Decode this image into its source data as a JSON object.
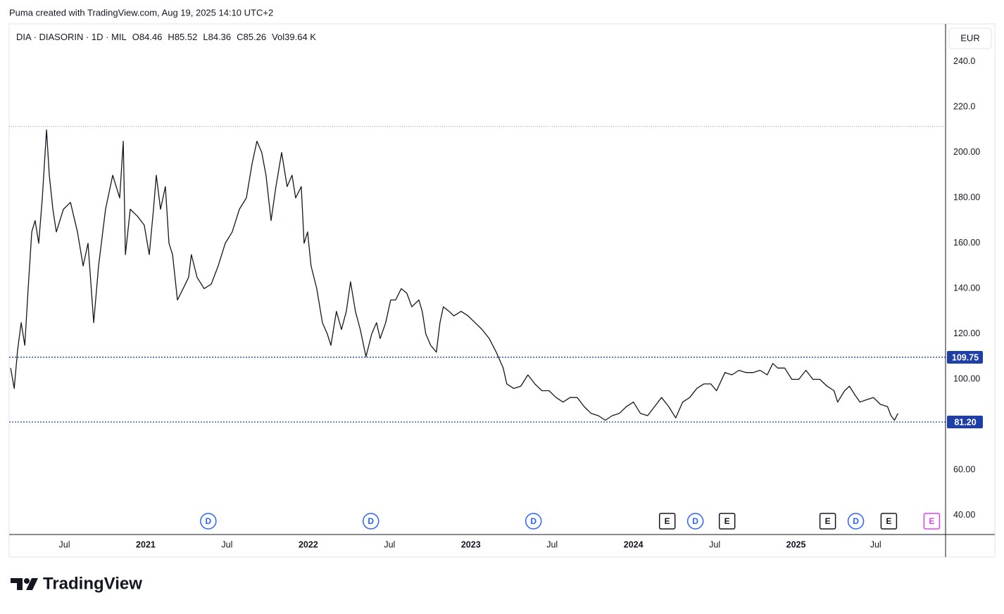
{
  "header": {
    "attribution": "Puma created with TradingView.com, Aug 19, 2025 14:10 UTC+2"
  },
  "chart_data": {
    "type": "line",
    "symbol": "DIA · DIASORIN · 1D · MIL",
    "ohlc": [
      {
        "label": "O",
        "value": 84.46
      },
      {
        "label": "H",
        "value": 85.52
      },
      {
        "label": "L",
        "value": 84.36
      },
      {
        "label": "C",
        "value": 85.26
      }
    ],
    "volume": {
      "label": "Vol",
      "value": "39.64 K"
    },
    "currency": "EUR",
    "x": [
      2020.169,
      2020.191,
      2020.212,
      2020.234,
      2020.256,
      2020.277,
      2020.299,
      2020.32,
      2020.342,
      2020.364,
      2020.39,
      2020.407,
      2020.429,
      2020.45,
      2020.494,
      2020.537,
      2020.58,
      2020.615,
      2020.645,
      2020.68,
      2020.71,
      2020.753,
      2020.797,
      2020.84,
      2020.862,
      2020.875,
      2020.905,
      2020.948,
      2020.991,
      2021.022,
      2021.048,
      2021.065,
      2021.091,
      2021.121,
      2021.143,
      2021.165,
      2021.195,
      2021.23,
      2021.264,
      2021.281,
      2021.316,
      2021.359,
      2021.403,
      2021.446,
      2021.489,
      2021.532,
      2021.576,
      2021.619,
      2021.654,
      2021.684,
      2021.714,
      2021.74,
      2021.771,
      2021.801,
      2021.836,
      2021.87,
      2021.9,
      2021.922,
      2021.957,
      2021.974,
      2021.996,
      2022.017,
      2022.052,
      2022.087,
      2022.117,
      2022.139,
      2022.173,
      2022.204,
      2022.234,
      2022.26,
      2022.29,
      2022.32,
      2022.355,
      2022.39,
      2022.42,
      2022.442,
      2022.476,
      2022.507,
      2022.537,
      2022.572,
      2022.606,
      2022.637,
      2022.68,
      2022.701,
      2022.723,
      2022.753,
      2022.788,
      2022.81,
      2022.831,
      2022.866,
      2022.896,
      2022.94,
      2022.983,
      2023.026,
      2023.069,
      2023.113,
      2023.156,
      2023.199,
      2023.221,
      2023.264,
      2023.307,
      2023.351,
      2023.394,
      2023.437,
      2023.481,
      2023.524,
      2023.567,
      2023.61,
      2023.654,
      2023.697,
      2023.74,
      2023.784,
      2023.827,
      2023.87,
      2023.913,
      2023.957,
      2024.0,
      2024.043,
      2024.087,
      2024.13,
      2024.173,
      2024.217,
      2024.26,
      2024.303,
      2024.346,
      2024.39,
      2024.433,
      2024.476,
      2024.511,
      2024.563,
      2024.606,
      2024.649,
      2024.693,
      2024.736,
      2024.779,
      2024.823,
      2024.857,
      2024.888,
      2024.931,
      2024.974,
      2025.017,
      2025.061,
      2025.104,
      2025.147,
      2025.191,
      2025.234,
      2025.256,
      2025.299,
      2025.329,
      2025.364,
      2025.394,
      2025.433,
      2025.476,
      2025.519,
      2025.563,
      2025.584,
      2025.606,
      2025.627
    ],
    "series": [
      {
        "color": "#131722",
        "values": [
          105,
          96,
          113,
          125,
          115,
          140,
          165,
          170,
          160,
          180,
          210,
          190,
          175,
          165,
          175,
          178,
          165,
          150,
          160,
          125,
          150,
          175,
          190,
          180,
          205,
          155,
          175,
          172,
          168,
          155,
          175,
          190,
          175,
          185,
          160,
          155,
          135,
          140,
          145,
          155,
          145,
          140,
          142,
          150,
          160,
          165,
          175,
          180,
          195,
          205,
          200,
          190,
          170,
          185,
          200,
          185,
          190,
          180,
          185,
          160,
          165,
          150,
          140,
          125,
          120,
          115,
          130,
          122,
          130,
          143,
          130,
          122,
          110,
          120,
          125,
          118,
          125,
          135,
          135,
          140,
          138,
          132,
          135,
          130,
          120,
          115,
          112,
          125,
          132,
          130,
          128,
          130,
          128,
          125,
          122,
          118,
          112,
          105,
          98,
          96,
          97,
          102,
          98,
          95,
          95,
          92,
          90,
          92,
          92,
          88,
          85,
          84,
          82,
          84,
          85,
          88,
          90,
          85,
          84,
          88,
          92,
          88,
          83,
          90,
          92,
          96,
          98,
          98,
          95,
          103,
          102,
          104,
          103,
          103,
          104,
          102,
          107,
          105,
          105,
          100,
          100,
          104,
          100,
          100,
          97,
          95,
          90,
          95,
          97,
          93,
          90,
          91,
          92,
          89,
          88,
          84,
          82,
          85
        ]
      }
    ],
    "xlim": [
      2020.16,
      2025.92
    ],
    "ylim": [
      31.6,
      256.4
    ],
    "yticks": [
      {
        "value": 240,
        "label": "240.0"
      },
      {
        "value": 220,
        "label": "220.0"
      },
      {
        "value": 200,
        "label": "200.00"
      },
      {
        "value": 180,
        "label": "180.00"
      },
      {
        "value": 160,
        "label": "160.00"
      },
      {
        "value": 140,
        "label": "140.00"
      },
      {
        "value": 120,
        "label": "120.00"
      },
      {
        "value": 100,
        "label": "100.00"
      },
      {
        "value": 60,
        "label": "60.00"
      },
      {
        "value": 40,
        "label": "40.00"
      }
    ],
    "xticks": [
      {
        "value": 2020.5,
        "label": "Jul"
      },
      2021,
      {
        "value": 2021.5,
        "label": "Jul"
      },
      2022,
      {
        "value": 2022.5,
        "label": "Jul"
      },
      2023,
      {
        "value": 2023.5,
        "label": "Jul"
      },
      2024,
      {
        "value": 2024.5,
        "label": "Jul"
      },
      2025,
      {
        "value": 2025.49,
        "label": "Jul"
      }
    ],
    "high_line": 211.5,
    "high_line_color": "#9598a1",
    "price_lines": [
      109.75,
      {
        "value": 81.2,
        "label": "81.20"
      }
    ],
    "price_line_color": "#1e3ea8",
    "events": [
      {
        "x": 2021.385,
        "label": "D",
        "color": "#2962ff"
      },
      {
        "x": 2022.385,
        "label": "D",
        "color": "#2962ff"
      },
      {
        "x": 2023.385,
        "label": "D",
        "color": "#2962ff"
      },
      {
        "x": 2024.208,
        "label": "E",
        "color": "#131722"
      },
      {
        "x": 2024.381,
        "label": "D",
        "color": "#2962ff"
      },
      {
        "x": 2024.576,
        "label": "E",
        "color": "#131722"
      },
      {
        "x": 2025.195,
        "label": "E",
        "color": "#131722"
      },
      {
        "x": 2025.368,
        "label": "D",
        "color": "#2962ff"
      },
      {
        "x": 2025.571,
        "label": "E",
        "color": "#131722"
      },
      {
        "x": 2025.835,
        "label": "E",
        "color": "#e040fb"
      }
    ]
  },
  "footer": {
    "brand": "TradingView"
  }
}
